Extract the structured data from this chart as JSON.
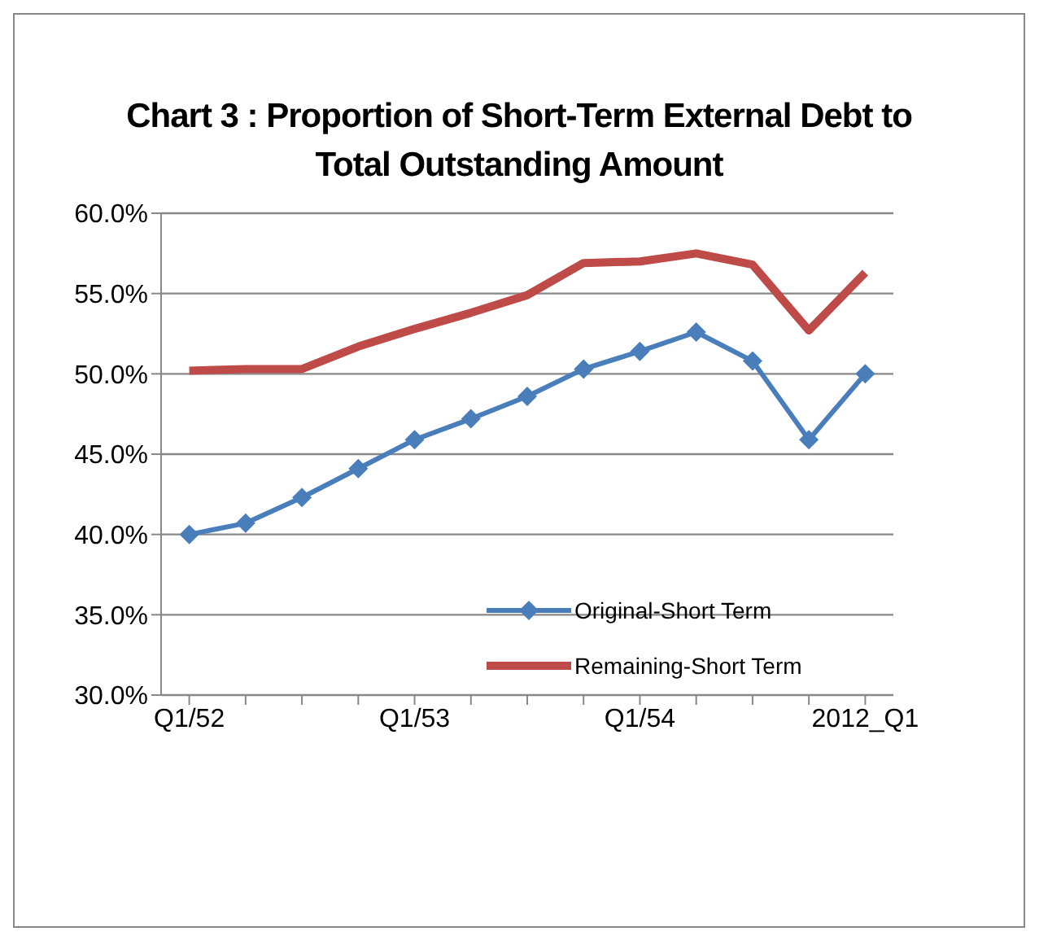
{
  "chart_data": {
    "type": "line",
    "title": "Chart 3 : Proportion of Short-Term External Debt to Total Outstanding Amount",
    "categories": [
      "Q1/52",
      null,
      null,
      null,
      "Q1/53",
      null,
      null,
      null,
      "Q1/54",
      null,
      null,
      null,
      "2012_Q1"
    ],
    "series": [
      {
        "name": "Original-Short Term",
        "color": "#4a7ebb",
        "marker": "diamond",
        "values": [
          40.0,
          40.7,
          42.3,
          44.1,
          45.9,
          47.2,
          48.6,
          50.3,
          51.4,
          52.6,
          50.8,
          45.9,
          50.0
        ]
      },
      {
        "name": "Remaining-Short Term",
        "color": "#be4b48",
        "marker": "none",
        "values": [
          50.2,
          50.3,
          50.3,
          51.7,
          52.8,
          53.8,
          54.9,
          56.9,
          57.0,
          57.5,
          56.8,
          52.7,
          56.3
        ]
      }
    ],
    "ylim": [
      30,
      60
    ],
    "yticks": [
      {
        "value": 30,
        "label": "30.0%"
      },
      {
        "value": 35,
        "label": "35.0%"
      },
      {
        "value": 40,
        "label": "40.0%"
      },
      {
        "value": 45,
        "label": "45.0%"
      },
      {
        "value": 50,
        "label": "50.0%"
      },
      {
        "value": 55,
        "label": "55.0%"
      },
      {
        "value": 60,
        "label": "60.0%"
      }
    ],
    "grid": "y",
    "legend": "bottom"
  }
}
